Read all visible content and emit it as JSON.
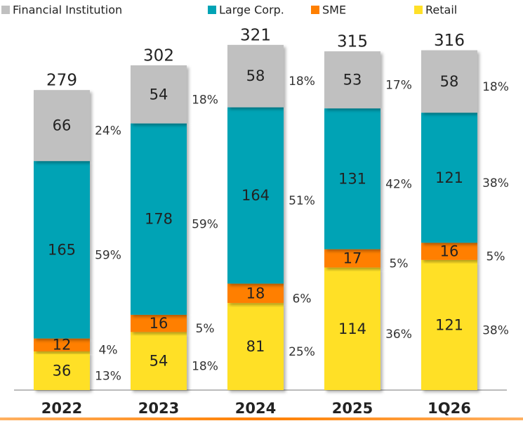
{
  "chart_data": {
    "type": "stacked_bar",
    "categories": [
      "2022",
      "2023",
      "2024",
      "2025",
      "1Q26"
    ],
    "totals": [
      279,
      302,
      321,
      315,
      316
    ],
    "series": [
      {
        "name": "Financial Institution",
        "color": "#c0c0c0",
        "values": [
          66,
          54,
          58,
          53,
          58
        ],
        "share_labels": [
          "24%",
          "18%",
          "18%",
          "17%",
          "18%"
        ]
      },
      {
        "name": "Large Corp.",
        "color": "#00a3b5",
        "values": [
          165,
          178,
          164,
          131,
          121
        ],
        "share_labels": [
          "59%",
          "59%",
          "51%",
          "42%",
          "38%"
        ]
      },
      {
        "name": "SME",
        "color": "#ff7f00",
        "values": [
          12,
          16,
          18,
          17,
          16
        ],
        "share_labels": [
          "4%",
          "5%",
          "6%",
          "5%",
          "5%"
        ]
      },
      {
        "name": "Retail",
        "color": "#ffe028",
        "values": [
          36,
          54,
          81,
          114,
          121
        ],
        "share_labels": [
          "13%",
          "18%",
          "25%",
          "36%",
          "38%"
        ]
      }
    ]
  }
}
